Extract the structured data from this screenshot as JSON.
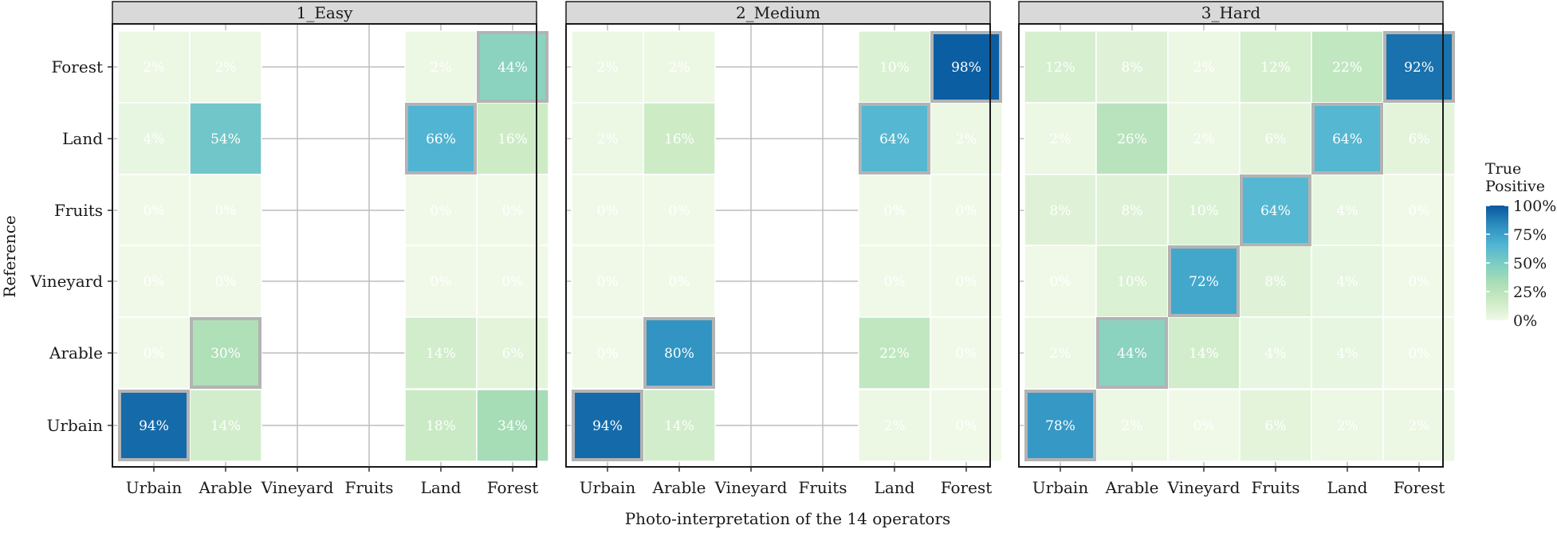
{
  "chart_data": {
    "type": "heatmap",
    "xlabel": "Photo-interpretation of the 14 operators",
    "ylabel": "Reference",
    "x_categories": [
      "Urbain",
      "Arable",
      "Vineyard",
      "Fruits",
      "Land",
      "Forest"
    ],
    "y_categories": [
      "Urbain",
      "Arable",
      "Vineyard",
      "Fruits",
      "Land",
      "Forest"
    ],
    "panels": [
      {
        "title": "1_Easy",
        "cells": [
          {
            "ref": "Forest",
            "pred": "Urbain",
            "value": 2
          },
          {
            "ref": "Forest",
            "pred": "Arable",
            "value": 2
          },
          {
            "ref": "Forest",
            "pred": "Land",
            "value": 2
          },
          {
            "ref": "Forest",
            "pred": "Forest",
            "value": 44
          },
          {
            "ref": "Land",
            "pred": "Urbain",
            "value": 4
          },
          {
            "ref": "Land",
            "pred": "Arable",
            "value": 54
          },
          {
            "ref": "Land",
            "pred": "Land",
            "value": 66
          },
          {
            "ref": "Land",
            "pred": "Forest",
            "value": 16
          },
          {
            "ref": "Fruits",
            "pred": "Urbain",
            "value": 0
          },
          {
            "ref": "Fruits",
            "pred": "Arable",
            "value": 0
          },
          {
            "ref": "Fruits",
            "pred": "Land",
            "value": 0
          },
          {
            "ref": "Fruits",
            "pred": "Forest",
            "value": 0
          },
          {
            "ref": "Vineyard",
            "pred": "Urbain",
            "value": 0
          },
          {
            "ref": "Vineyard",
            "pred": "Arable",
            "value": 0
          },
          {
            "ref": "Vineyard",
            "pred": "Land",
            "value": 0
          },
          {
            "ref": "Vineyard",
            "pred": "Forest",
            "value": 0
          },
          {
            "ref": "Arable",
            "pred": "Urbain",
            "value": 0
          },
          {
            "ref": "Arable",
            "pred": "Arable",
            "value": 30
          },
          {
            "ref": "Arable",
            "pred": "Land",
            "value": 14
          },
          {
            "ref": "Arable",
            "pred": "Forest",
            "value": 6
          },
          {
            "ref": "Urbain",
            "pred": "Urbain",
            "value": 94
          },
          {
            "ref": "Urbain",
            "pred": "Arable",
            "value": 14
          },
          {
            "ref": "Urbain",
            "pred": "Land",
            "value": 18
          },
          {
            "ref": "Urbain",
            "pred": "Forest",
            "value": 34
          }
        ]
      },
      {
        "title": "2_Medium",
        "cells": [
          {
            "ref": "Forest",
            "pred": "Urbain",
            "value": 2
          },
          {
            "ref": "Forest",
            "pred": "Arable",
            "value": 2
          },
          {
            "ref": "Forest",
            "pred": "Land",
            "value": 10
          },
          {
            "ref": "Forest",
            "pred": "Forest",
            "value": 98
          },
          {
            "ref": "Land",
            "pred": "Urbain",
            "value": 2
          },
          {
            "ref": "Land",
            "pred": "Arable",
            "value": 16
          },
          {
            "ref": "Land",
            "pred": "Land",
            "value": 64
          },
          {
            "ref": "Land",
            "pred": "Forest",
            "value": 2
          },
          {
            "ref": "Fruits",
            "pred": "Urbain",
            "value": 0
          },
          {
            "ref": "Fruits",
            "pred": "Arable",
            "value": 0
          },
          {
            "ref": "Fruits",
            "pred": "Land",
            "value": 0
          },
          {
            "ref": "Fruits",
            "pred": "Forest",
            "value": 0
          },
          {
            "ref": "Vineyard",
            "pred": "Urbain",
            "value": 0
          },
          {
            "ref": "Vineyard",
            "pred": "Arable",
            "value": 0
          },
          {
            "ref": "Vineyard",
            "pred": "Land",
            "value": 0
          },
          {
            "ref": "Vineyard",
            "pred": "Forest",
            "value": 0
          },
          {
            "ref": "Arable",
            "pred": "Urbain",
            "value": 0
          },
          {
            "ref": "Arable",
            "pred": "Arable",
            "value": 80
          },
          {
            "ref": "Arable",
            "pred": "Land",
            "value": 22
          },
          {
            "ref": "Arable",
            "pred": "Forest",
            "value": 0
          },
          {
            "ref": "Urbain",
            "pred": "Urbain",
            "value": 94
          },
          {
            "ref": "Urbain",
            "pred": "Arable",
            "value": 14
          },
          {
            "ref": "Urbain",
            "pred": "Land",
            "value": 2
          },
          {
            "ref": "Urbain",
            "pred": "Forest",
            "value": 0
          }
        ]
      },
      {
        "title": "3_Hard",
        "cells": [
          {
            "ref": "Forest",
            "pred": "Urbain",
            "value": 12
          },
          {
            "ref": "Forest",
            "pred": "Arable",
            "value": 8
          },
          {
            "ref": "Forest",
            "pred": "Vineyard",
            "value": 2
          },
          {
            "ref": "Forest",
            "pred": "Fruits",
            "value": 12
          },
          {
            "ref": "Forest",
            "pred": "Land",
            "value": 22
          },
          {
            "ref": "Forest",
            "pred": "Forest",
            "value": 92
          },
          {
            "ref": "Land",
            "pred": "Urbain",
            "value": 2
          },
          {
            "ref": "Land",
            "pred": "Arable",
            "value": 26
          },
          {
            "ref": "Land",
            "pred": "Vineyard",
            "value": 2
          },
          {
            "ref": "Land",
            "pred": "Fruits",
            "value": 6
          },
          {
            "ref": "Land",
            "pred": "Land",
            "value": 64
          },
          {
            "ref": "Land",
            "pred": "Forest",
            "value": 6
          },
          {
            "ref": "Fruits",
            "pred": "Urbain",
            "value": 8
          },
          {
            "ref": "Fruits",
            "pred": "Arable",
            "value": 8
          },
          {
            "ref": "Fruits",
            "pred": "Vineyard",
            "value": 10
          },
          {
            "ref": "Fruits",
            "pred": "Fruits",
            "value": 64
          },
          {
            "ref": "Fruits",
            "pred": "Land",
            "value": 4
          },
          {
            "ref": "Fruits",
            "pred": "Forest",
            "value": 0
          },
          {
            "ref": "Vineyard",
            "pred": "Urbain",
            "value": 0
          },
          {
            "ref": "Vineyard",
            "pred": "Arable",
            "value": 10
          },
          {
            "ref": "Vineyard",
            "pred": "Vineyard",
            "value": 72
          },
          {
            "ref": "Vineyard",
            "pred": "Fruits",
            "value": 8
          },
          {
            "ref": "Vineyard",
            "pred": "Land",
            "value": 4
          },
          {
            "ref": "Vineyard",
            "pred": "Forest",
            "value": 0
          },
          {
            "ref": "Arable",
            "pred": "Urbain",
            "value": 2
          },
          {
            "ref": "Arable",
            "pred": "Arable",
            "value": 44
          },
          {
            "ref": "Arable",
            "pred": "Vineyard",
            "value": 14
          },
          {
            "ref": "Arable",
            "pred": "Fruits",
            "value": 4
          },
          {
            "ref": "Arable",
            "pred": "Land",
            "value": 4
          },
          {
            "ref": "Arable",
            "pred": "Forest",
            "value": 0
          },
          {
            "ref": "Urbain",
            "pred": "Urbain",
            "value": 78
          },
          {
            "ref": "Urbain",
            "pred": "Arable",
            "value": 2
          },
          {
            "ref": "Urbain",
            "pred": "Vineyard",
            "value": 0
          },
          {
            "ref": "Urbain",
            "pred": "Fruits",
            "value": 6
          },
          {
            "ref": "Urbain",
            "pred": "Land",
            "value": 2
          },
          {
            "ref": "Urbain",
            "pred": "Forest",
            "value": 2
          }
        ]
      }
    ],
    "legend": {
      "title_line1": "True",
      "title_line2": "Positive",
      "ticks": [
        "100%",
        "75%",
        "50%",
        "25%",
        "0%"
      ],
      "tick_values": [
        100,
        75,
        50,
        25,
        0
      ],
      "position": "right"
    },
    "colors": {
      "low": "#f0f9e8",
      "stops": [
        "#f0f9e8",
        "#ccebc5",
        "#a8ddb5",
        "#7bccc4",
        "#4eb3d3",
        "#2b8cbe",
        "#08589e"
      ],
      "strip_fill": "#d9d9d9",
      "grid": "#bebebe",
      "diagonal_border": "#b3b3b3"
    },
    "value_suffix": "%",
    "grid": true,
    "diagonal_highlight": true
  }
}
